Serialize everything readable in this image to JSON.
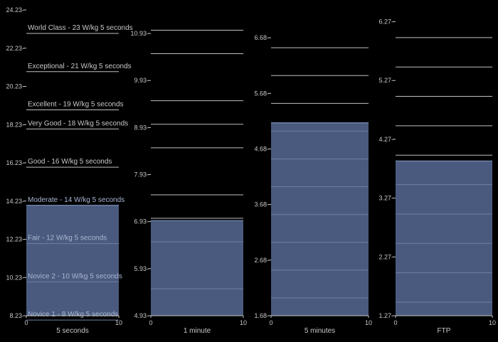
{
  "colors": {
    "background": "#000000",
    "bar": "#4a5a7e",
    "bar_edge": "#6f80a6",
    "level_line": "#bfbfbf",
    "text": "#c8c8c8"
  },
  "chart_data": [
    {
      "type": "bar",
      "xlabel": "5 seconds",
      "ylim": [
        8.23,
        24.23
      ],
      "yticks": [
        "8.23",
        "10.23",
        "12.23",
        "14.23",
        "16.23",
        "18.23",
        "20.23",
        "22.23",
        "24.23"
      ],
      "xlim": [
        0,
        10
      ],
      "xticks": [
        "0",
        "10"
      ],
      "value": 14.0,
      "levels": [
        {
          "label": "Novice 1 - 8 W/kg 5 seconds",
          "value": 8
        },
        {
          "label": "Novice 2 - 10 W/kg 5 seconds",
          "value": 10
        },
        {
          "label": "Fair - 12 W/kg 5 seconds",
          "value": 12
        },
        {
          "label": "Moderate - 14 W/kg 5 seconds",
          "value": 14
        },
        {
          "label": "Good - 16 W/kg 5 seconds",
          "value": 16
        },
        {
          "label": "Very Good - 18 W/kg 5 seconds",
          "value": 18
        },
        {
          "label": "Excellent - 19 W/kg 5 seconds",
          "value": 19
        },
        {
          "label": "Exceptional - 21 W/kg 5 seconds",
          "value": 21
        },
        {
          "label": "World Class - 23 W/kg 5 seconds",
          "value": 23
        }
      ]
    },
    {
      "type": "bar",
      "xlabel": "1 minute",
      "ylim": [
        4.93,
        11.43
      ],
      "yticks": [
        "4.93",
        "5.93",
        "6.93",
        "7.93",
        "8.93",
        "9.93",
        "10.93"
      ],
      "xlim": [
        0,
        10
      ],
      "xticks": [
        "0",
        "10"
      ],
      "value": 6.95,
      "levels": [
        {
          "label": "",
          "value": 5.5
        },
        {
          "label": "",
          "value": 6.5
        },
        {
          "label": "",
          "value": 7.0
        },
        {
          "label": "",
          "value": 7.5
        },
        {
          "label": "",
          "value": 8.5
        },
        {
          "label": "",
          "value": 9.0
        },
        {
          "label": "",
          "value": 9.5
        },
        {
          "label": "",
          "value": 10.5
        },
        {
          "label": "",
          "value": 11.0
        }
      ]
    },
    {
      "type": "bar",
      "xlabel": "5 minutes",
      "ylim": [
        1.68,
        7.18
      ],
      "yticks": [
        "1.68",
        "2.68",
        "3.68",
        "4.68",
        "5.68",
        "6.68"
      ],
      "xlim": [
        0,
        10
      ],
      "xticks": [
        "0",
        "10"
      ],
      "value": 5.15,
      "levels": [
        {
          "label": "",
          "value": 2.0
        },
        {
          "label": "",
          "value": 2.5
        },
        {
          "label": "",
          "value": 3.0
        },
        {
          "label": "",
          "value": 3.5
        },
        {
          "label": "",
          "value": 4.0
        },
        {
          "label": "",
          "value": 4.5
        },
        {
          "label": "",
          "value": 5.0
        },
        {
          "label": "",
          "value": 5.5
        },
        {
          "label": "",
          "value": 6.0
        },
        {
          "label": "",
          "value": 6.5
        }
      ]
    },
    {
      "type": "bar",
      "xlabel": "FTP",
      "ylim": [
        1.27,
        6.47
      ],
      "yticks": [
        "1.27",
        "2.27",
        "3.27",
        "4.27",
        "5.27",
        "6.27"
      ],
      "xlim": [
        0,
        10
      ],
      "xticks": [
        "0",
        "10"
      ],
      "value": 3.9,
      "levels": [
        {
          "label": "",
          "value": 1.5
        },
        {
          "label": "",
          "value": 2.0
        },
        {
          "label": "",
          "value": 2.5
        },
        {
          "label": "",
          "value": 3.0
        },
        {
          "label": "",
          "value": 3.5
        },
        {
          "label": "",
          "value": 4.0
        },
        {
          "label": "",
          "value": 4.5
        },
        {
          "label": "",
          "value": 5.0
        },
        {
          "label": "",
          "value": 5.5
        },
        {
          "label": "",
          "value": 6.0
        }
      ]
    }
  ]
}
